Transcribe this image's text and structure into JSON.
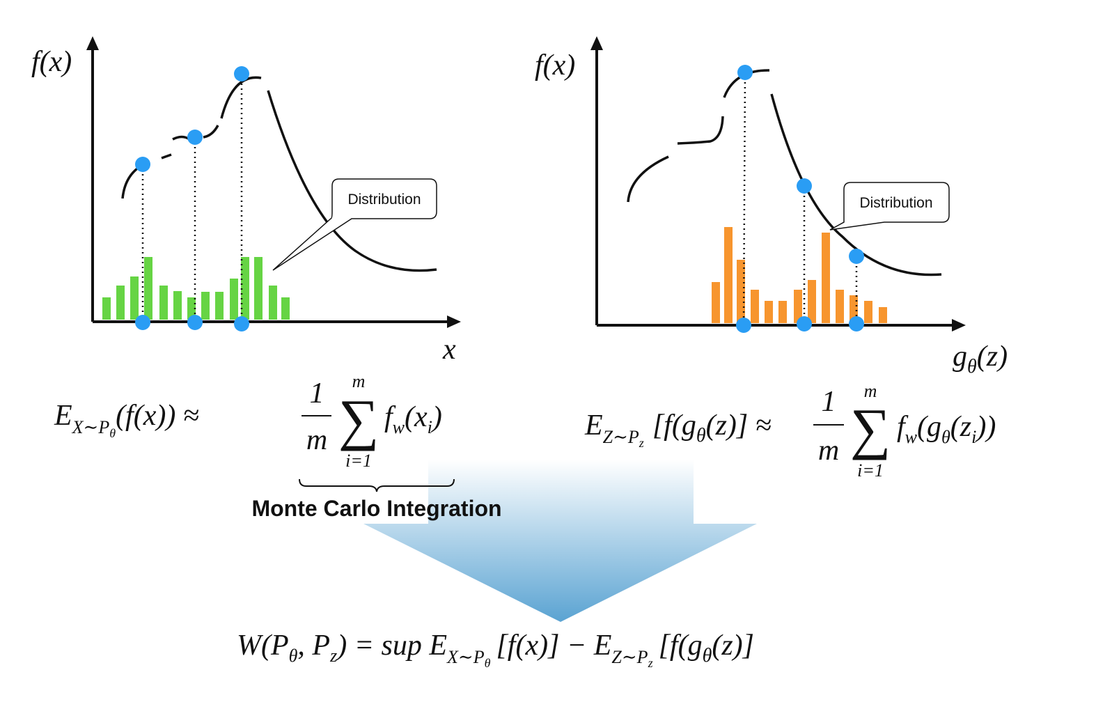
{
  "left_chart": {
    "y_label": "f(x)",
    "x_label": "x",
    "callout": "Distribution"
  },
  "right_chart": {
    "y_label": "f(x)",
    "x_label": [
      "g",
      "θ",
      "(z)"
    ],
    "callout": "Distribution"
  },
  "left_formula": {
    "lhs": [
      "E",
      "X∼P",
      "θ",
      "(f(x)) ≈"
    ],
    "numerator": "1",
    "denominator": "m",
    "sum": "∑",
    "upper": "m",
    "lower": "i=1",
    "term": [
      "f",
      "w",
      "(x",
      "i",
      ")"
    ],
    "brace_label": "Monte Carlo Integration"
  },
  "right_formula": {
    "lhs": [
      "E",
      "Z∼P",
      "z",
      "[f(g",
      "θ",
      "(z)] ≈"
    ],
    "numerator": "1",
    "denominator": "m",
    "sum": "∑",
    "upper": "m",
    "lower": "i=1",
    "term": [
      "f",
      "w",
      "(g",
      "θ",
      "(z",
      "i",
      "))"
    ]
  },
  "bottom_formula": [
    "W(P",
    "θ",
    ", P",
    "z",
    ") = sup E",
    "X∼P",
    "θ",
    "[f(x)] − E",
    "Z∼P",
    "z",
    "[f(g",
    "θ",
    "(z)]"
  ]
}
